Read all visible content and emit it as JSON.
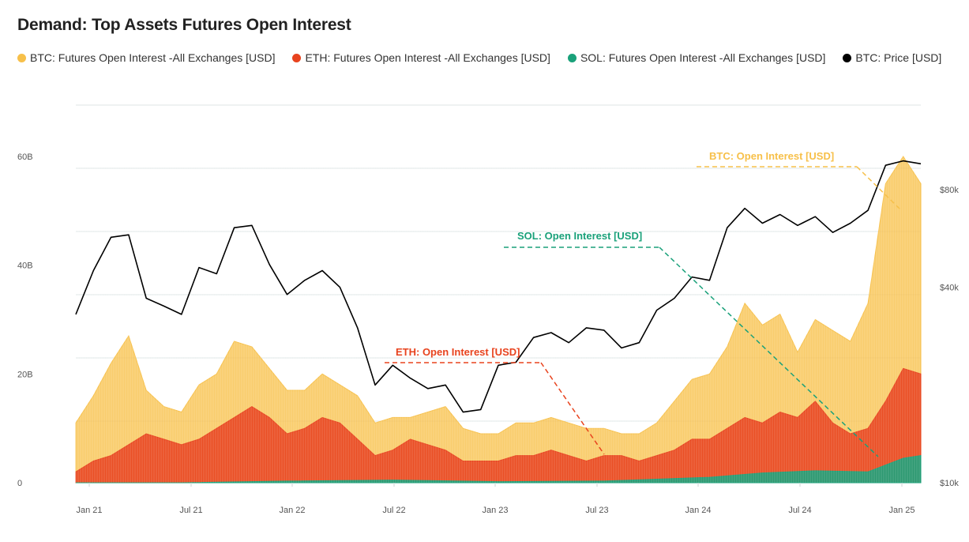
{
  "chart_data": {
    "type": "area",
    "title": "Demand: Top Assets Futures Open Interest",
    "legend_position": "top",
    "colors": {
      "btc_oi": "#f7c04a",
      "eth_oi": "#e8431e",
      "sol_oi": "#1aa17a",
      "btc_price": "#000000",
      "grid": "#dfe6e6"
    },
    "x_ticks": [
      "Jan 21",
      "Jul 21",
      "Jan 22",
      "Jul 22",
      "Jan 23",
      "Jul 23",
      "Jan 24",
      "Jul 24",
      "Jan 25"
    ],
    "x_range": [
      "2021-01",
      "2025-01"
    ],
    "y_left": {
      "ticks": [
        "0",
        "20B",
        "40B",
        "60B"
      ],
      "range_billions": [
        0,
        60
      ]
    },
    "y_right": {
      "scale": "log",
      "ticks": [
        "$10k",
        "$40k",
        "$80k"
      ],
      "range_usd": [
        10000,
        100000
      ]
    },
    "series": [
      {
        "name": "BTC: Futures Open Interest -All Exchanges [USD]",
        "unit": "USD billions",
        "x": [
          "2021-01",
          "2021-02",
          "2021-03",
          "2021-04",
          "2021-05",
          "2021-06",
          "2021-07",
          "2021-08",
          "2021-09",
          "2021-10",
          "2021-11",
          "2021-12",
          "2022-01",
          "2022-02",
          "2022-03",
          "2022-04",
          "2022-05",
          "2022-06",
          "2022-07",
          "2022-08",
          "2022-09",
          "2022-10",
          "2022-11",
          "2022-12",
          "2023-01",
          "2023-02",
          "2023-03",
          "2023-04",
          "2023-05",
          "2023-06",
          "2023-07",
          "2023-08",
          "2023-09",
          "2023-10",
          "2023-11",
          "2023-12",
          "2024-01",
          "2024-02",
          "2024-03",
          "2024-04",
          "2024-05",
          "2024-06",
          "2024-07",
          "2024-08",
          "2024-09",
          "2024-10",
          "2024-11",
          "2024-12",
          "2025-01"
        ],
        "values": [
          11,
          16,
          22,
          27,
          17,
          14,
          13,
          18,
          20,
          26,
          25,
          21,
          17,
          17,
          20,
          18,
          16,
          11,
          12,
          12,
          13,
          14,
          10,
          9,
          9,
          11,
          11,
          12,
          11,
          10,
          10,
          9,
          9,
          11,
          15,
          19,
          20,
          25,
          33,
          29,
          31,
          24,
          30,
          28,
          26,
          33,
          55,
          60,
          55
        ]
      },
      {
        "name": "ETH: Futures Open Interest -All Exchanges [USD]",
        "unit": "USD billions",
        "x": [
          "2021-01",
          "2021-02",
          "2021-03",
          "2021-04",
          "2021-05",
          "2021-06",
          "2021-07",
          "2021-08",
          "2021-09",
          "2021-10",
          "2021-11",
          "2021-12",
          "2022-01",
          "2022-02",
          "2022-03",
          "2022-04",
          "2022-05",
          "2022-06",
          "2022-07",
          "2022-08",
          "2022-09",
          "2022-10",
          "2022-11",
          "2022-12",
          "2023-01",
          "2023-02",
          "2023-03",
          "2023-04",
          "2023-05",
          "2023-06",
          "2023-07",
          "2023-08",
          "2023-09",
          "2023-10",
          "2023-11",
          "2023-12",
          "2024-01",
          "2024-02",
          "2024-03",
          "2024-04",
          "2024-05",
          "2024-06",
          "2024-07",
          "2024-08",
          "2024-09",
          "2024-10",
          "2024-11",
          "2024-12",
          "2025-01"
        ],
        "values": [
          2,
          4,
          5,
          7,
          9,
          8,
          7,
          8,
          10,
          12,
          14,
          12,
          9,
          10,
          12,
          11,
          8,
          5,
          6,
          8,
          7,
          6,
          4,
          4,
          4,
          5,
          5,
          6,
          5,
          4,
          5,
          5,
          4,
          5,
          6,
          8,
          8,
          10,
          12,
          11,
          13,
          12,
          15,
          11,
          9,
          10,
          15,
          21,
          20
        ]
      },
      {
        "name": "SOL: Futures Open Interest -All Exchanges [USD]",
        "unit": "USD billions",
        "x": [
          "2021-01",
          "2021-07",
          "2022-01",
          "2022-07",
          "2023-01",
          "2023-07",
          "2024-01",
          "2024-04",
          "2024-07",
          "2024-10",
          "2024-12",
          "2025-01"
        ],
        "values": [
          0,
          0,
          0.3,
          0.5,
          0.2,
          0.3,
          1.0,
          1.8,
          2.2,
          2.0,
          4.5,
          5.0
        ]
      },
      {
        "name": "BTC: Price [USD]",
        "unit": "USD",
        "x": [
          "2021-01",
          "2021-02",
          "2021-03",
          "2021-04",
          "2021-05",
          "2021-06",
          "2021-07",
          "2021-08",
          "2021-09",
          "2021-10",
          "2021-11",
          "2021-12",
          "2022-01",
          "2022-02",
          "2022-03",
          "2022-04",
          "2022-05",
          "2022-06",
          "2022-07",
          "2022-08",
          "2022-09",
          "2022-10",
          "2022-11",
          "2022-12",
          "2023-01",
          "2023-02",
          "2023-03",
          "2023-04",
          "2023-05",
          "2023-06",
          "2023-07",
          "2023-08",
          "2023-09",
          "2023-10",
          "2023-11",
          "2023-12",
          "2024-01",
          "2024-02",
          "2024-03",
          "2024-04",
          "2024-05",
          "2024-06",
          "2024-07",
          "2024-08",
          "2024-09",
          "2024-10",
          "2024-11",
          "2024-12",
          "2025-01"
        ],
        "values": [
          33000,
          45000,
          57000,
          58000,
          37000,
          35000,
          33000,
          46000,
          44000,
          61000,
          62000,
          47000,
          38000,
          42000,
          45000,
          40000,
          30000,
          20000,
          23000,
          21000,
          19500,
          20000,
          16500,
          16800,
          23000,
          23500,
          28000,
          29000,
          27000,
          30000,
          29500,
          26000,
          27000,
          34000,
          37000,
          43000,
          42000,
          61000,
          70000,
          63000,
          67000,
          62000,
          66000,
          59000,
          63000,
          69000,
          95000,
          98000,
          96000
        ]
      }
    ],
    "annotations": [
      {
        "text": "BTC: Open Interest [USD]",
        "color": "#f7c04a"
      },
      {
        "text": "SOL: Open Interest [USD]",
        "color": "#1aa17a"
      },
      {
        "text": "ETH: Open Interest [USD]",
        "color": "#e8431e"
      }
    ]
  }
}
